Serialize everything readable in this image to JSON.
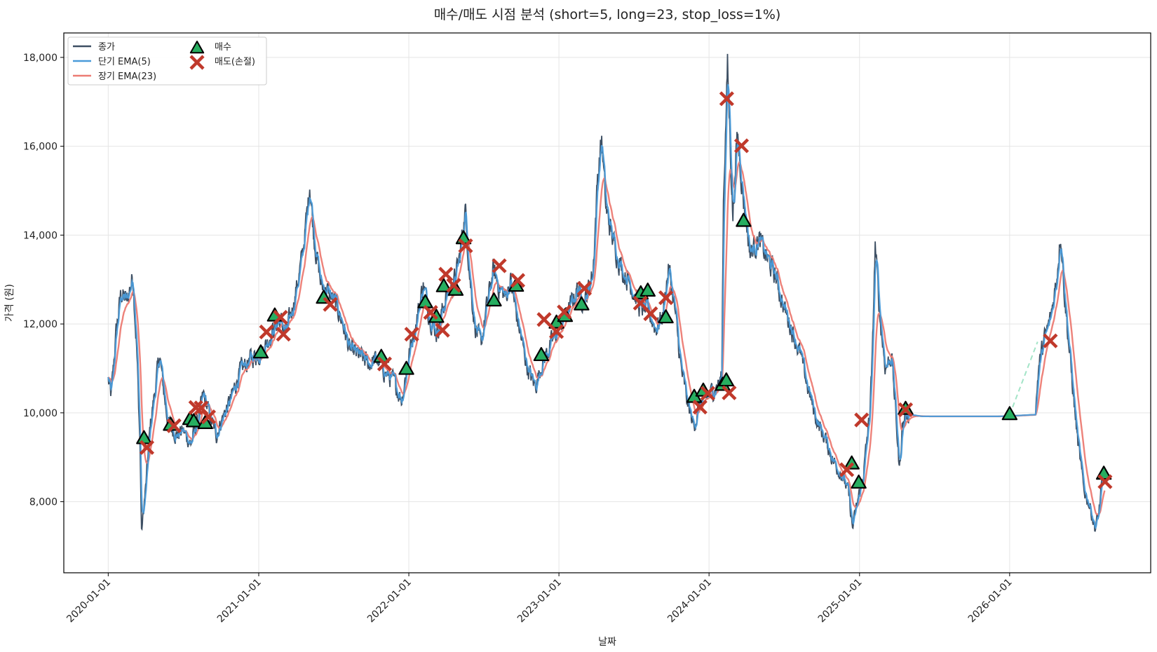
{
  "colors": {
    "close": "#3d4f63",
    "ema_short": "#4a9bd9",
    "ema_long": "#ec7b73",
    "buy": "#27ae60",
    "sell": "#c0392b",
    "gap_dash": "#a3e4c7",
    "grid": "#e5e5e5"
  },
  "chart_data": {
    "type": "line",
    "title": "매수/매도 시점 분석 (short=5, long=23, stop_loss=1%)",
    "xlabel": "날짜",
    "ylabel": "가격 (원)",
    "xlim": [
      "2019-09-15",
      "2026-12-10"
    ],
    "ylim": [
      6400,
      18550
    ],
    "x_ticks": [
      "2020-01-01",
      "2021-01-01",
      "2022-01-01",
      "2023-01-01",
      "2024-01-01",
      "2025-01-01",
      "2026-01-01"
    ],
    "y_ticks": [
      8000,
      10000,
      12000,
      14000,
      16000,
      18000
    ],
    "y_tick_labels": [
      "8,000",
      "10,000",
      "12,000",
      "14,000",
      "16,000",
      "18,000"
    ],
    "grid": true,
    "legend_position": "top-left",
    "legend": [
      {
        "key": "close",
        "label": "종가"
      },
      {
        "key": "ema_short",
        "label": "단기 EMA(5)"
      },
      {
        "key": "ema_long",
        "label": "장기 EMA(23)"
      },
      {
        "key": "buy",
        "label": "매수"
      },
      {
        "key": "sell",
        "label": "매도(손절)"
      }
    ],
    "close_anchors": [
      [
        "2020-01-01",
        10750
      ],
      [
        "2020-01-08",
        10350
      ],
      [
        "2020-01-20",
        11800
      ],
      [
        "2020-02-01",
        12700
      ],
      [
        "2020-02-15",
        12500
      ],
      [
        "2020-03-01",
        13100
      ],
      [
        "2020-03-10",
        11500
      ],
      [
        "2020-03-18",
        9400
      ],
      [
        "2020-03-22",
        7300
      ],
      [
        "2020-04-01",
        8300
      ],
      [
        "2020-04-12",
        9700
      ],
      [
        "2020-04-25",
        10600
      ],
      [
        "2020-05-05",
        11300
      ],
      [
        "2020-05-15",
        10500
      ],
      [
        "2020-05-25",
        9800
      ],
      [
        "2020-06-15",
        9500
      ],
      [
        "2020-07-01",
        9600
      ],
      [
        "2020-07-20",
        9300
      ],
      [
        "2020-08-05",
        9800
      ],
      [
        "2020-08-20",
        10400
      ],
      [
        "2020-09-05",
        9900
      ],
      [
        "2020-09-20",
        9500
      ],
      [
        "2020-10-05",
        9900
      ],
      [
        "2020-10-25",
        10300
      ],
      [
        "2020-11-15",
        10900
      ],
      [
        "2020-12-10",
        11200
      ],
      [
        "2021-01-10",
        11400
      ],
      [
        "2021-02-01",
        11800
      ],
      [
        "2021-02-20",
        12100
      ],
      [
        "2021-03-10",
        11800
      ],
      [
        "2021-03-25",
        12400
      ],
      [
        "2021-04-15",
        13400
      ],
      [
        "2021-04-30",
        14600
      ],
      [
        "2021-05-05",
        15200
      ],
      [
        "2021-05-15",
        14000
      ],
      [
        "2021-06-01",
        12900
      ],
      [
        "2021-06-20",
        12700
      ],
      [
        "2021-07-10",
        12400
      ],
      [
        "2021-07-25",
        12000
      ],
      [
        "2021-08-10",
        11400
      ],
      [
        "2021-09-01",
        11300
      ],
      [
        "2021-09-25",
        11100
      ],
      [
        "2021-10-15",
        11200
      ],
      [
        "2021-11-05",
        10900
      ],
      [
        "2021-11-25",
        10700
      ],
      [
        "2021-12-15",
        10300
      ],
      [
        "2022-01-01",
        11300
      ],
      [
        "2022-01-20",
        12100
      ],
      [
        "2022-02-05",
        12900
      ],
      [
        "2022-02-20",
        12200
      ],
      [
        "2022-03-10",
        11800
      ],
      [
        "2022-04-01",
        12600
      ],
      [
        "2022-04-20",
        12900
      ],
      [
        "2022-05-05",
        13500
      ],
      [
        "2022-05-18",
        14600
      ],
      [
        "2022-05-30",
        13000
      ],
      [
        "2022-06-10",
        12000
      ],
      [
        "2022-06-25",
        11500
      ],
      [
        "2022-07-10",
        12400
      ],
      [
        "2022-07-25",
        13200
      ],
      [
        "2022-08-10",
        12800
      ],
      [
        "2022-08-25",
        12600
      ],
      [
        "2022-09-05",
        13000
      ],
      [
        "2022-09-20",
        12200
      ],
      [
        "2022-10-05",
        11500
      ],
      [
        "2022-10-20",
        10900
      ],
      [
        "2022-11-05",
        10600
      ],
      [
        "2022-11-20",
        11100
      ],
      [
        "2022-12-10",
        11500
      ],
      [
        "2023-01-01",
        11900
      ],
      [
        "2023-01-25",
        12300
      ],
      [
        "2023-02-15",
        12800
      ],
      [
        "2023-03-05",
        12500
      ],
      [
        "2023-03-25",
        13200
      ],
      [
        "2023-04-05",
        15300
      ],
      [
        "2023-04-15",
        16200
      ],
      [
        "2023-04-25",
        14600
      ],
      [
        "2023-05-15",
        13800
      ],
      [
        "2023-06-05",
        13200
      ],
      [
        "2023-06-25",
        12900
      ],
      [
        "2023-07-15",
        12400
      ],
      [
        "2023-08-05",
        12300
      ],
      [
        "2023-08-25",
        11900
      ],
      [
        "2023-09-10",
        12200
      ],
      [
        "2023-09-25",
        13300
      ],
      [
        "2023-10-10",
        12300
      ],
      [
        "2023-10-25",
        11000
      ],
      [
        "2023-11-10",
        10200
      ],
      [
        "2023-11-25",
        9700
      ],
      [
        "2023-12-10",
        10200
      ],
      [
        "2024-01-01",
        10400
      ],
      [
        "2024-01-20",
        10600
      ],
      [
        "2024-02-01",
        10800
      ],
      [
        "2024-02-05",
        14800
      ],
      [
        "2024-02-15",
        17800
      ],
      [
        "2024-02-28",
        14400
      ],
      [
        "2024-03-10",
        16300
      ],
      [
        "2024-03-25",
        14800
      ],
      [
        "2024-04-10",
        13600
      ],
      [
        "2024-04-30",
        13900
      ],
      [
        "2024-05-20",
        13500
      ],
      [
        "2024-06-10",
        13100
      ],
      [
        "2024-06-30",
        12400
      ],
      [
        "2024-07-20",
        11900
      ],
      [
        "2024-08-10",
        11300
      ],
      [
        "2024-08-30",
        10500
      ],
      [
        "2024-09-20",
        9800
      ],
      [
        "2024-10-10",
        9400
      ],
      [
        "2024-10-30",
        8900
      ],
      [
        "2024-11-20",
        8600
      ],
      [
        "2024-12-05",
        8200
      ],
      [
        "2024-12-15",
        7400
      ],
      [
        "2024-12-25",
        7900
      ],
      [
        "2025-01-10",
        8600
      ],
      [
        "2025-01-25",
        9900
      ],
      [
        "2025-02-01",
        11200
      ],
      [
        "2025-02-08",
        13800
      ],
      [
        "2025-02-20",
        12100
      ],
      [
        "2025-03-05",
        11000
      ],
      [
        "2025-03-20",
        11300
      ],
      [
        "2025-04-01",
        9700
      ],
      [
        "2025-04-08",
        8700
      ],
      [
        "2025-04-15",
        9700
      ],
      [
        "2025-04-25",
        10000
      ],
      [
        "2025-05-10",
        9950
      ],
      [
        "2025-06-01",
        9920
      ],
      [
        "2025-08-01",
        9920
      ],
      [
        "2025-12-01",
        9920
      ],
      [
        "2026-01-01",
        9930
      ],
      [
        "2026-03-05",
        9960
      ],
      [
        "2026-03-12",
        11000
      ],
      [
        "2026-03-25",
        11600
      ],
      [
        "2026-04-10",
        12100
      ],
      [
        "2026-04-25",
        13000
      ],
      [
        "2026-05-05",
        14100
      ],
      [
        "2026-05-15",
        12600
      ],
      [
        "2026-05-30",
        11000
      ],
      [
        "2026-06-15",
        9400
      ],
      [
        "2026-06-30",
        8300
      ],
      [
        "2026-07-15",
        7900
      ],
      [
        "2026-07-28",
        7400
      ],
      [
        "2026-08-05",
        7700
      ],
      [
        "2026-08-15",
        8500
      ],
      [
        "2026-08-20",
        8700
      ]
    ],
    "flat_ranges": [
      [
        "2025-05-01",
        "2026-03-05"
      ]
    ],
    "gap_line": [
      [
        "2026-01-01",
        9950
      ],
      [
        "2026-03-10",
        11600
      ]
    ],
    "buy_signals": [
      [
        "2020-03-28",
        9420
      ],
      [
        "2020-06-01",
        9720
      ],
      [
        "2020-07-18",
        9850
      ],
      [
        "2020-07-27",
        9800
      ],
      [
        "2020-08-24",
        9760
      ],
      [
        "2021-01-06",
        11350
      ],
      [
        "2021-02-09",
        12180
      ],
      [
        "2021-06-08",
        12580
      ],
      [
        "2021-10-26",
        11250
      ],
      [
        "2021-12-26",
        10980
      ],
      [
        "2022-02-10",
        12480
      ],
      [
        "2022-03-09",
        12150
      ],
      [
        "2022-03-27",
        12840
      ],
      [
        "2022-04-25",
        12760
      ],
      [
        "2022-05-14",
        13920
      ],
      [
        "2022-07-27",
        12520
      ],
      [
        "2022-09-19",
        12850
      ],
      [
        "2022-11-19",
        11290
      ],
      [
        "2022-12-26",
        12020
      ],
      [
        "2023-01-16",
        12170
      ],
      [
        "2023-02-25",
        12430
      ],
      [
        "2023-07-19",
        12680
      ],
      [
        "2023-08-05",
        12740
      ],
      [
        "2023-09-18",
        12140
      ],
      [
        "2023-11-26",
        10350
      ],
      [
        "2023-12-18",
        10490
      ],
      [
        "2024-02-03",
        10620
      ],
      [
        "2024-02-12",
        10720
      ],
      [
        "2024-03-25",
        14310
      ],
      [
        "2024-12-13",
        8850
      ],
      [
        "2024-12-30",
        8420
      ],
      [
        "2025-04-23",
        10080
      ],
      [
        "2026-01-01",
        9960
      ],
      [
        "2026-08-18",
        8620
      ]
    ],
    "sell_signals": [
      [
        "2020-04-04",
        9220
      ],
      [
        "2020-06-09",
        9710
      ],
      [
        "2020-08-01",
        10120
      ],
      [
        "2020-08-14",
        10110
      ],
      [
        "2020-09-01",
        9910
      ],
      [
        "2021-01-20",
        11820
      ],
      [
        "2021-02-23",
        12150
      ],
      [
        "2021-03-02",
        11770
      ],
      [
        "2021-06-24",
        12440
      ],
      [
        "2021-11-03",
        11100
      ],
      [
        "2022-01-08",
        11770
      ],
      [
        "2022-02-23",
        12260
      ],
      [
        "2022-03-24",
        11860
      ],
      [
        "2022-04-01",
        13120
      ],
      [
        "2022-04-20",
        12870
      ],
      [
        "2022-05-19",
        13760
      ],
      [
        "2022-08-09",
        13310
      ],
      [
        "2022-09-23",
        12980
      ],
      [
        "2022-11-26",
        12100
      ],
      [
        "2022-12-26",
        11830
      ],
      [
        "2023-01-14",
        12270
      ],
      [
        "2023-03-04",
        12800
      ],
      [
        "2023-07-18",
        12470
      ],
      [
        "2023-08-12",
        12230
      ],
      [
        "2023-09-18",
        12590
      ],
      [
        "2023-12-10",
        10130
      ],
      [
        "2023-12-29",
        10440
      ],
      [
        "2024-02-19",
        10450
      ],
      [
        "2024-02-13",
        17070
      ],
      [
        "2024-03-20",
        16010
      ],
      [
        "2024-12-01",
        8720
      ],
      [
        "2025-01-06",
        9840
      ],
      [
        "2025-04-23",
        10070
      ],
      [
        "2026-04-10",
        11620
      ],
      [
        "2026-08-21",
        8450
      ]
    ]
  }
}
